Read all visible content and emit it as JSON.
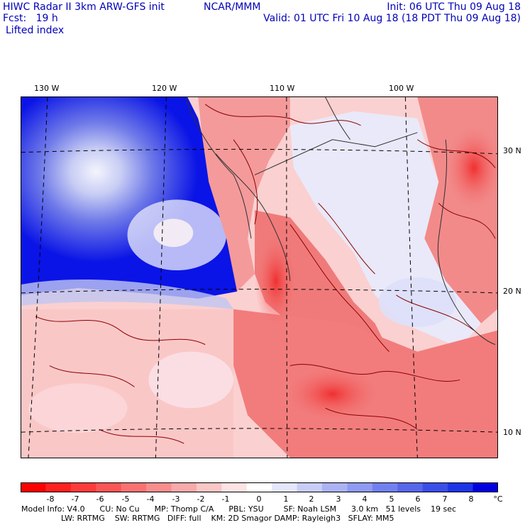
{
  "header": {
    "model": "HIWC Radar II 3km ARW-GFS init",
    "org": "NCAR/MMM",
    "init": "Init: 06 UTC Thu 09 Aug 18",
    "fcst": "Fcst:   19 h",
    "valid": "Valid: 01 UTC Fri 10 Aug 18 (18 PDT Thu 09 Aug 18)",
    "field": "Lifted index"
  },
  "map": {
    "longitude_labels": [
      "130 W",
      "120 W",
      "110 W",
      "100 W"
    ],
    "latitude_labels": [
      "30 N",
      "20 N",
      "10 N"
    ],
    "colors": {
      "ocean_blue": "#0a14e6",
      "light_blue": "#d8dcf6",
      "pink": "#fbd6d6",
      "red": "#f06060",
      "contour": "#8b0000"
    }
  },
  "colorbar": {
    "labels": [
      "-8",
      "-7",
      "-6",
      "-5",
      "-4",
      "-3",
      "-2",
      "-1",
      "0",
      "1",
      "2",
      "3",
      "4",
      "5",
      "6",
      "7",
      "8"
    ],
    "unit": "°C",
    "colors": [
      "#ff0000",
      "#fe2020",
      "#fd3b3b",
      "#fb5656",
      "#f97272",
      "#f78d8d",
      "#f8a9a9",
      "#fac6c6",
      "#fde3e3",
      "#ffffff",
      "#e4e6fb",
      "#c8cdf8",
      "#abb3f5",
      "#8f9af2",
      "#7280ef",
      "#5667ec",
      "#394ee9",
      "#1d35e6",
      "#0000e0"
    ]
  },
  "model_info": {
    "line1": "Model Info: V4.0      CU: No Cu      MP: Thomp C/A      PBL: YSU        SF: Noah LSM      3.0 km   51 levels    19 sec",
    "line2": "                LW: RRTMG    SW: RRTMG   DIFF: full    KM: 2D Smagor DAMP: Rayleigh3   SFLAY: MM5"
  }
}
